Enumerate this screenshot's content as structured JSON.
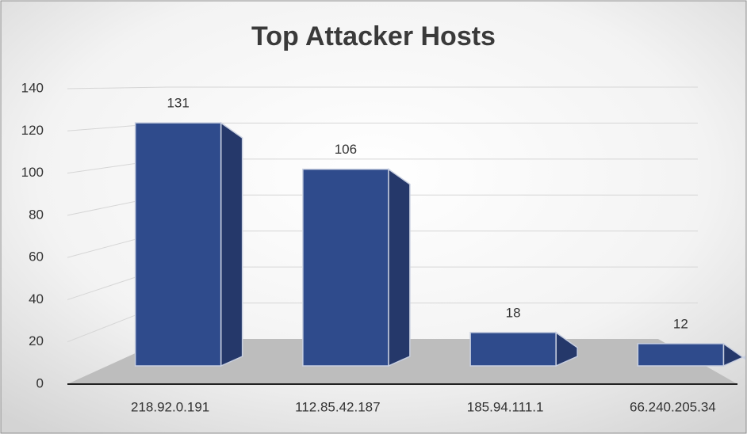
{
  "chart_data": {
    "type": "bar3d",
    "title": "Top Attacker Hosts",
    "categories": [
      "218.92.0.191",
      "112.85.42.187",
      "185.94.111.1",
      "66.240.205.34"
    ],
    "values": [
      131,
      106,
      18,
      12
    ],
    "color": "#2f4b8c",
    "ylim": [
      0,
      140
    ],
    "yticks": [
      0,
      20,
      40,
      60,
      80,
      100,
      120,
      140
    ],
    "grid": true
  }
}
